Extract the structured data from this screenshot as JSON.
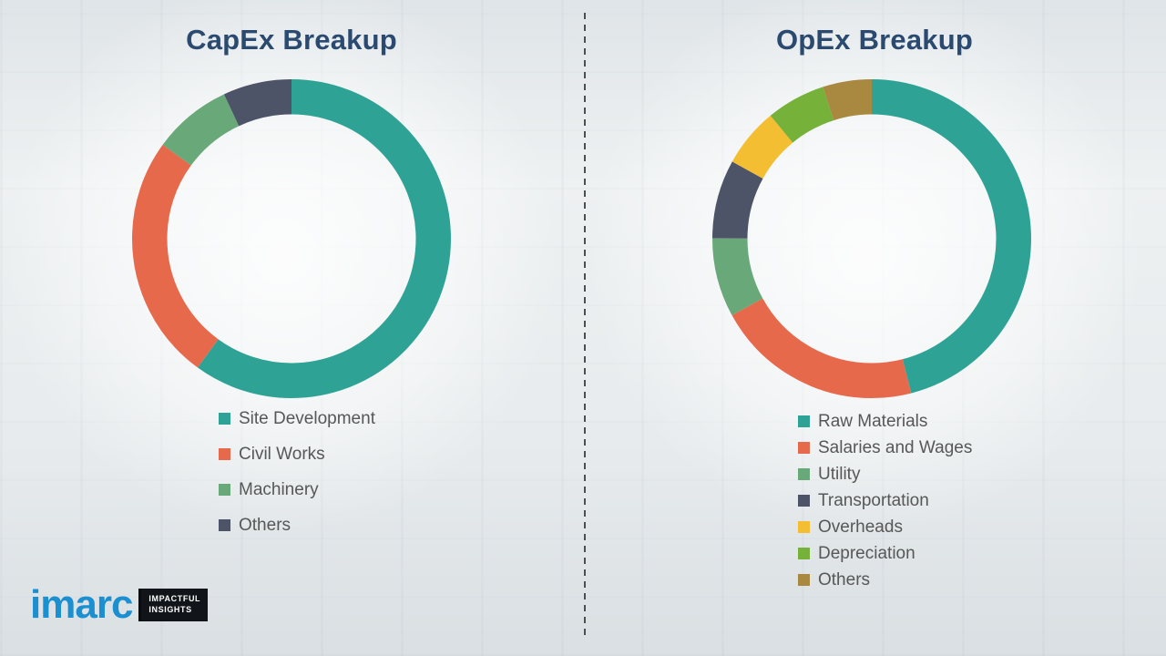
{
  "style": {
    "title_color": "#2b4a70",
    "legend_text_color": "#575757",
    "brand_color": "#1b8fd0"
  },
  "chart_data": [
    {
      "type": "pie",
      "donut": true,
      "title": "CapEx Breakup",
      "legend_position": "bottom-left",
      "units": "% (estimated from arc angles, no labels shown)",
      "segments": [
        {
          "label": "Site Development",
          "value": 60,
          "color": "#2ea395"
        },
        {
          "label": "Civil Works",
          "value": 25,
          "color": "#e7694b"
        },
        {
          "label": "Machinery",
          "value": 8,
          "color": "#69a878"
        },
        {
          "label": "Others",
          "value": 7,
          "color": "#4d5468"
        }
      ]
    },
    {
      "type": "pie",
      "donut": true,
      "title": "OpEx Breakup",
      "legend_position": "bottom-left",
      "units": "% (estimated from arc angles, no labels shown)",
      "segments": [
        {
          "label": "Raw Materials",
          "value": 46,
          "color": "#2ea395"
        },
        {
          "label": "Salaries and Wages",
          "value": 21,
          "color": "#e7694b"
        },
        {
          "label": "Utility",
          "value": 8,
          "color": "#69a878"
        },
        {
          "label": "Transportation",
          "value": 8,
          "color": "#4d5468"
        },
        {
          "label": "Overheads",
          "value": 6,
          "color": "#f4be32"
        },
        {
          "label": "Depreciation",
          "value": 6,
          "color": "#76b13a"
        },
        {
          "label": "Others",
          "value": 5,
          "color": "#a8893f"
        }
      ]
    }
  ],
  "logo": {
    "brand": "imarc",
    "tagline_line1": "IMPACTFUL",
    "tagline_line2": "INSIGHTS"
  }
}
